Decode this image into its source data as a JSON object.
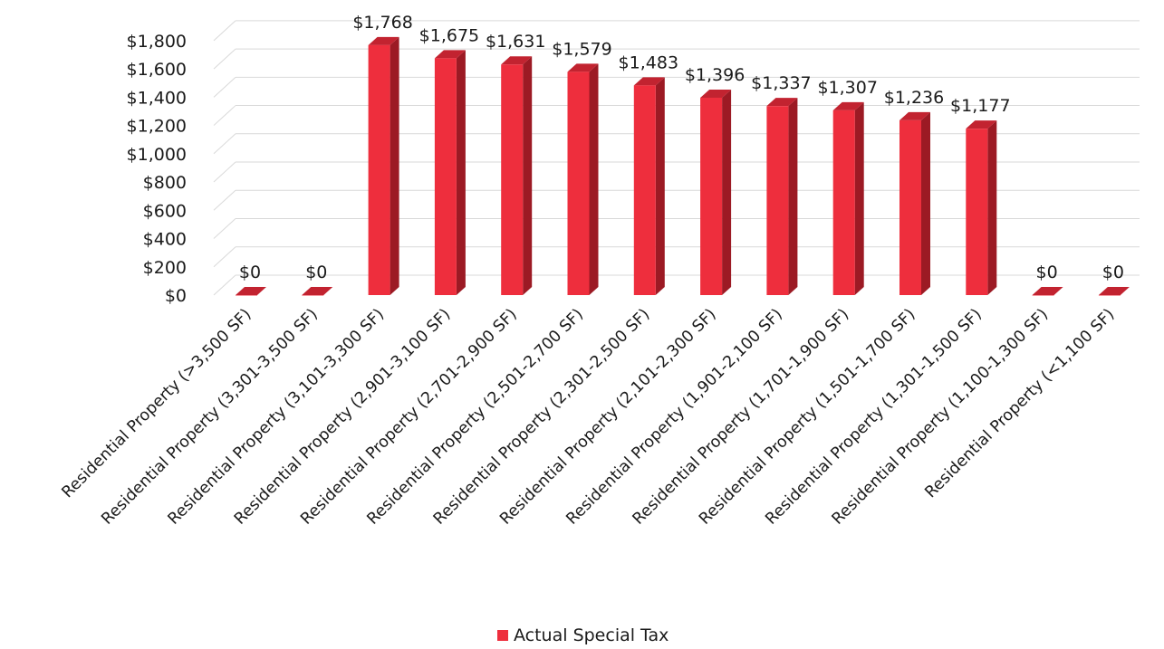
{
  "chart_data": {
    "type": "bar",
    "categories": [
      "Residential Property (>3,500 SF)",
      "Residential Property (3,301-3,500 SF)",
      "Residential Property (3,101-3,300 SF)",
      "Residential Property (2,901-3,100 SF)",
      "Residential Property (2,701-2,900 SF)",
      "Residential Property (2,501-2,700 SF)",
      "Residential Property (2,301-2,500 SF)",
      "Residential Property (2,101-2,300 SF)",
      "Residential Property (1,901-2,100 SF)",
      "Residential Property (1,701-1,900 SF)",
      "Residential Property (1,501-1,700 SF)",
      "Residential Property (1,301-1,500 SF)",
      "Residential Property (1,100-1,300 SF)",
      "Residential Property (<1,100 SF)"
    ],
    "series": [
      {
        "name": "Actual Special Tax",
        "values": [
          0,
          0,
          1768,
          1675,
          1631,
          1579,
          1483,
          1396,
          1337,
          1307,
          1236,
          1177,
          0,
          0
        ],
        "data_labels": [
          "$0",
          "$0",
          "$1,768",
          "$1,675",
          "$1,631",
          "$1,579",
          "$1,483",
          "$1,396",
          "$1,337",
          "$1,307",
          "$1,236",
          "$1,177",
          "$0",
          "$0"
        ]
      }
    ],
    "title": "",
    "xlabel": "",
    "ylabel": "",
    "ylim": [
      0,
      1800
    ],
    "y_ticks": [
      0,
      200,
      400,
      600,
      800,
      1000,
      1200,
      1400,
      1600,
      1800
    ],
    "y_tick_labels": [
      "$0",
      "$200",
      "$400",
      "$600",
      "$800",
      "$1,000",
      "$1,200",
      "$1,400",
      "$1,600",
      "$1,800"
    ],
    "grid": true,
    "style": "3d-column",
    "legend_position": "bottom",
    "colors": {
      "bar_front": "#ee2e3d",
      "bar_side": "#9c1a24",
      "bar_top": "#c22330",
      "grid": "#d9d9d9"
    }
  }
}
